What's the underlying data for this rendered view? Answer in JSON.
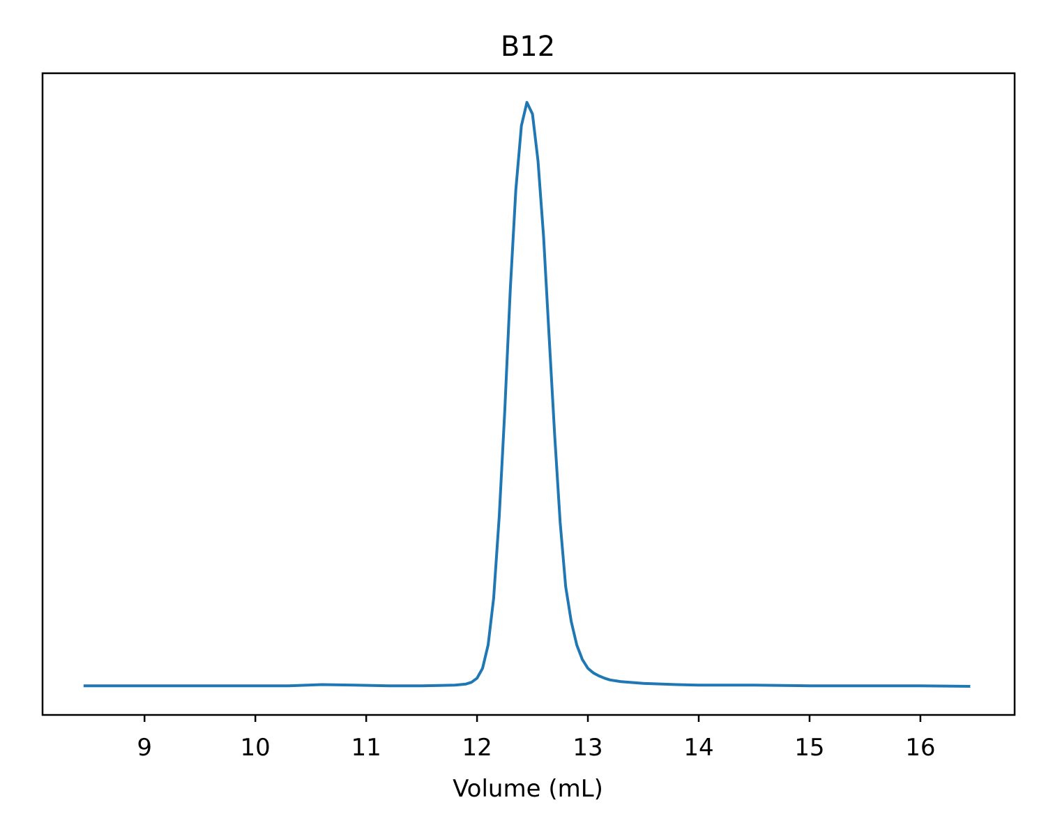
{
  "chart_data": {
    "type": "line",
    "title": "B12",
    "xlabel": "Volume (mL)",
    "ylabel": "",
    "xlim": [
      8.08,
      16.85
    ],
    "ylim": [
      -0.05,
      1.05
    ],
    "x_ticks": [
      "9",
      "10",
      "11",
      "12",
      "13",
      "14",
      "15",
      "16"
    ],
    "y_ticks_shown": false,
    "grid": false,
    "legend": "none",
    "series_color": "#1f77b4",
    "series": [
      {
        "x": [
          8.45,
          9.0,
          9.5,
          10.0,
          10.3,
          10.6,
          10.9,
          11.2,
          11.5,
          11.8,
          11.9,
          11.95,
          12.0,
          12.05,
          12.1,
          12.15,
          12.2,
          12.25,
          12.3,
          12.35,
          12.4,
          12.45,
          12.5,
          12.55,
          12.6,
          12.65,
          12.7,
          12.75,
          12.8,
          12.85,
          12.9,
          12.95,
          13.0,
          13.05,
          13.1,
          13.15,
          13.2,
          13.3,
          13.5,
          13.8,
          14.0,
          14.5,
          15.0,
          15.5,
          16.0,
          16.45
        ],
        "y": [
          0.0,
          0.0,
          0.0,
          0.0,
          0.0,
          0.002,
          0.001,
          0.0,
          0.0,
          0.001,
          0.003,
          0.006,
          0.013,
          0.03,
          0.07,
          0.15,
          0.29,
          0.47,
          0.68,
          0.85,
          0.96,
          1.0,
          0.98,
          0.9,
          0.77,
          0.6,
          0.43,
          0.28,
          0.17,
          0.11,
          0.07,
          0.045,
          0.03,
          0.022,
          0.017,
          0.013,
          0.01,
          0.007,
          0.004,
          0.002,
          0.001,
          0.001,
          0.0,
          0.0,
          0.0,
          -0.001
        ]
      }
    ]
  }
}
